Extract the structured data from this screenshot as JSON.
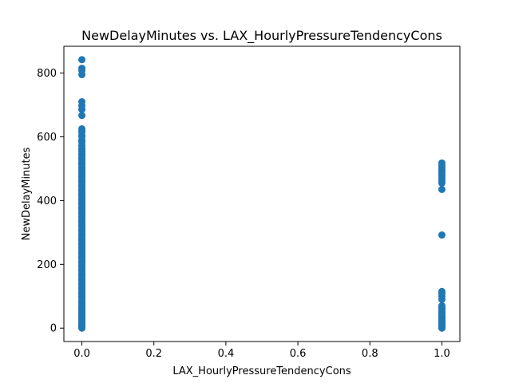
{
  "chart_data": {
    "type": "scatter",
    "title": "NewDelayMinutes vs. LAX_HourlyPressureTendencyCons",
    "xlabel": "LAX_HourlyPressureTendencyCons",
    "ylabel": "NewDelayMinutes",
    "xlim": [
      -0.05,
      1.05
    ],
    "ylim": [
      -42,
      884
    ],
    "x_ticks": [
      0.0,
      0.2,
      0.4,
      0.6,
      0.8,
      1.0
    ],
    "x_tick_labels": [
      "0.0",
      "0.2",
      "0.4",
      "0.6",
      "0.8",
      "1.0"
    ],
    "y_ticks": [
      0,
      200,
      400,
      600,
      800
    ],
    "y_tick_labels": [
      "0",
      "200",
      "400",
      "600",
      "800"
    ],
    "grid": false,
    "legend": "none",
    "marker_color": "#1f77b4",
    "series": [
      {
        "x": [
          0,
          0,
          0,
          0,
          0,
          0,
          0,
          0,
          0,
          0,
          0,
          0,
          0,
          0,
          0,
          0,
          0,
          0,
          0,
          0,
          0,
          0,
          0,
          0,
          0,
          0,
          0,
          0,
          0,
          0,
          0,
          0,
          0,
          0,
          0,
          0,
          0,
          0,
          0,
          0,
          0,
          0,
          0,
          0,
          0,
          0,
          0,
          0,
          0,
          0,
          0,
          0,
          0,
          0,
          0,
          0,
          0,
          0,
          0,
          0,
          0,
          0,
          0,
          0,
          0,
          0,
          0,
          0,
          0,
          0,
          0,
          0,
          0,
          0,
          0,
          0,
          0,
          0,
          0,
          0,
          0,
          0,
          0,
          0,
          0,
          0,
          0,
          0,
          0,
          0,
          0,
          0,
          0,
          0,
          0,
          0,
          0,
          0,
          0,
          0,
          0,
          0,
          0,
          0,
          0,
          0,
          0,
          0,
          0,
          0,
          0,
          0,
          0,
          0,
          0,
          0,
          0,
          0,
          0,
          0,
          0,
          0,
          0,
          0,
          0,
          0,
          0,
          0,
          0,
          0,
          0,
          0,
          0,
          0,
          0,
          0,
          0,
          0,
          0,
          0,
          0,
          0,
          0,
          0,
          0,
          1,
          1,
          1,
          1,
          1,
          1,
          1,
          1,
          1,
          1,
          1,
          1,
          1,
          1,
          1,
          1,
          1,
          1,
          1,
          1,
          1,
          1,
          1,
          1,
          1,
          1,
          1,
          1,
          1,
          1,
          1,
          1,
          1,
          1,
          1,
          1,
          1,
          1,
          1,
          1,
          1
        ],
        "y": [
          842,
          815,
          808,
          795,
          710,
          698,
          686,
          667,
          625,
          618,
          605,
          590,
          583,
          570,
          562,
          555,
          548,
          540,
          533,
          526,
          519,
          512,
          505,
          498,
          491,
          484,
          477,
          470,
          463,
          456,
          449,
          442,
          435,
          428,
          421,
          414,
          407,
          400,
          393,
          386,
          379,
          372,
          365,
          358,
          351,
          344,
          337,
          330,
          323,
          316,
          309,
          302,
          295,
          288,
          281,
          274,
          267,
          260,
          253,
          246,
          239,
          232,
          225,
          218,
          211,
          204,
          197,
          190,
          183,
          176,
          169,
          162,
          155,
          148,
          141,
          134,
          127,
          120,
          113,
          106,
          99,
          92,
          85,
          78,
          71,
          64,
          57,
          50,
          43,
          36,
          29,
          22,
          15,
          8,
          3,
          0,
          12,
          27,
          41,
          55,
          69,
          83,
          97,
          111,
          125,
          139,
          153,
          167,
          181,
          195,
          209,
          223,
          237,
          251,
          265,
          279,
          293,
          307,
          321,
          335,
          349,
          363,
          377,
          391,
          405,
          419,
          433,
          447,
          461,
          475,
          489,
          503,
          517,
          531,
          545,
          559,
          573,
          587,
          601,
          615,
          5,
          18,
          33,
          47,
          61,
          518,
          510,
          505,
          498,
          492,
          485,
          478,
          470,
          462,
          455,
          435,
          292,
          115,
          108,
          100,
          90,
          70,
          64,
          58,
          52,
          46,
          40,
          34,
          28,
          22,
          16,
          10,
          5,
          1,
          0,
          3,
          8,
          13,
          25,
          37,
          49,
          62,
          30,
          20,
          12,
          4
        ]
      }
    ]
  }
}
